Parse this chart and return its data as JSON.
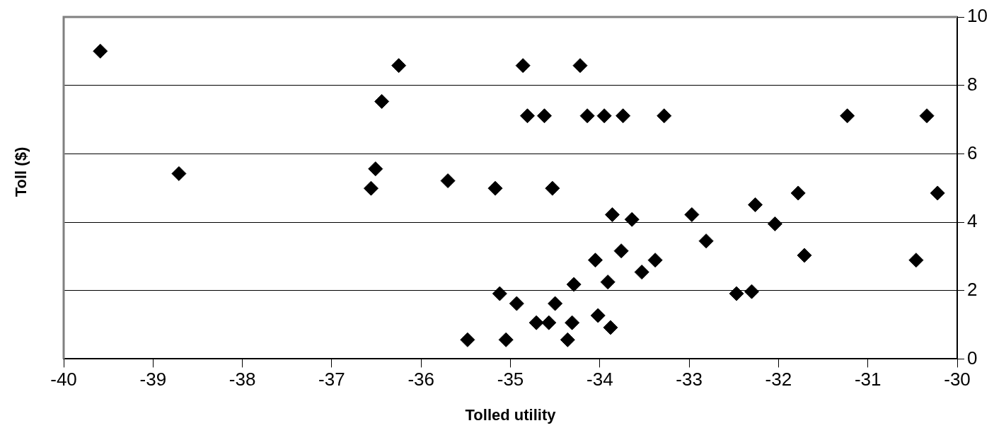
{
  "chart_data": {
    "type": "scatter",
    "xlabel": "Tolled utility",
    "ylabel": "Toll ($)",
    "x": [
      -39.59,
      -38.71,
      -36.25,
      -34.86,
      -34.22,
      -36.44,
      -34.81,
      -34.62,
      -34.14,
      -33.95,
      -33.74,
      -36.51,
      -36.56,
      -35.7,
      -35.17,
      -34.53,
      -33.86,
      -33.64,
      -33.76,
      -34.05,
      -33.91,
      -33.53,
      -34.29,
      -35.12,
      -34.93,
      -34.5,
      -34.71,
      -34.57,
      -34.31,
      -34.02,
      -33.88,
      -35.48,
      -35.05,
      -34.36,
      -33.28,
      -31.23,
      -30.34,
      -30.22,
      -31.78,
      -32.26,
      -32.04,
      -32.97,
      -32.81,
      -31.71,
      -30.46,
      -33.38,
      -32.47,
      -32.3
    ],
    "values": [
      9.0,
      5.42,
      8.58,
      8.58,
      8.58,
      7.53,
      7.11,
      7.11,
      7.11,
      7.11,
      7.11,
      5.56,
      4.99,
      5.21,
      4.99,
      4.99,
      4.22,
      4.08,
      3.16,
      2.89,
      2.25,
      2.54,
      2.18,
      1.91,
      1.62,
      1.62,
      1.06,
      1.06,
      1.06,
      1.27,
      0.92,
      0.56,
      0.56,
      0.56,
      7.11,
      7.11,
      7.11,
      4.85,
      4.85,
      4.51,
      3.95,
      4.22,
      3.45,
      3.03,
      2.89,
      2.89,
      1.91,
      1.97
    ],
    "color": "#000000",
    "marker": "diamond",
    "grid": "y",
    "xlim": [
      -40,
      -30
    ],
    "xticks": [
      -40,
      -39,
      -38,
      -37,
      -36,
      -35,
      -34,
      -33,
      -32,
      -31,
      -30
    ],
    "ylim": [
      0,
      10
    ],
    "yticks": [
      0,
      2,
      4,
      6,
      8,
      10
    ]
  }
}
